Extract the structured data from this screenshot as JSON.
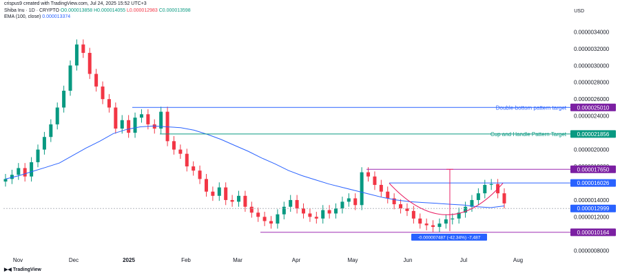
{
  "header": {
    "creator_line": "crispus9 created with TradingView.com, Jul 24, 2025 15:52 UTC+3",
    "symbol": "Shiba Inu · 1D · CRYPTO",
    "open": "O0.000013858",
    "high": "H0.000014055",
    "low": "L0.000012983",
    "close": "C0.000013598",
    "ema_label": "EMA (100, close)",
    "ema_value": "0.000013374",
    "currency": "USD"
  },
  "brand": "TradingView",
  "colors": {
    "up": "#089981",
    "down": "#f23645",
    "ema": "#2962ff",
    "double_bottom": "#2962ff",
    "cup_handle": "#089981",
    "magenta": "#9c27b0",
    "grid": "#f0f3fa"
  },
  "chart_data": {
    "type": "candlestick",
    "y_ticks": [
      "0.0000034000",
      "0.0000032000",
      "0.0000030000",
      "0.0000028000",
      "0.0000026000",
      "0.0000024000",
      "0.0000022000",
      "0.0000020000",
      "0.0000018000",
      "0.0000014000",
      "0.0000012000",
      "0.0000008000"
    ],
    "ylim": [
      7.7e-06,
      3.55e-05
    ],
    "x_ticks": [
      "Nov",
      "Dec",
      "2025",
      "Feb",
      "Mar",
      "Apr",
      "May",
      "Jun",
      "Jul",
      "Aug"
    ],
    "price_labels": [
      {
        "text": "0.000025010",
        "value": 2.501e-05,
        "color": "#7b1fa2"
      },
      {
        "text": "0.000021856",
        "value": 2.1856e-05,
        "color": "#089981"
      },
      {
        "text": "0.000017650",
        "value": 1.765e-05,
        "color": "#7b1fa2"
      },
      {
        "text": "0.000016026",
        "value": 1.6026e-05,
        "color": "#2962ff"
      },
      {
        "text": "0.000012999",
        "value": 1.2999e-05,
        "color": "#2962ff"
      },
      {
        "text": "0.000010164",
        "value": 1.0164e-05,
        "color": "#7b1fa2"
      }
    ],
    "annotations": [
      {
        "text": "Double-bottom pattern target",
        "value": 2.501e-05,
        "color": "#2962ff"
      },
      {
        "text": "Cup and Handle Pattern Target",
        "value": 2.1856e-05,
        "color": "#089981"
      }
    ],
    "measure_label": "-0.000007487 (-42.34%) -7,487",
    "series": [
      {
        "name": "EMA (100, close)",
        "values": [
          16.5,
          16.9,
          17.4,
          17.9,
          18.4,
          19.3,
          20.2,
          21.0,
          21.9,
          22.4,
          22.7,
          22.8,
          22.7,
          22.6,
          22.3,
          21.8,
          21.2,
          20.5,
          19.8,
          19.0,
          18.3,
          17.5,
          16.9,
          16.4,
          15.9,
          15.5,
          15.1,
          14.7,
          14.3,
          14.0,
          13.8,
          13.7,
          13.6,
          13.5,
          13.4,
          13.2,
          13.1,
          13.3
        ]
      }
    ],
    "closes": [
      16.5,
      17.0,
      17.8,
      16.8,
      18.5,
      20.0,
      21.5,
      23.0,
      25.0,
      27.0,
      30.0,
      32.5,
      31.5,
      29.0,
      27.5,
      26.0,
      25.0,
      22.5,
      23.5,
      22.0,
      23.8,
      24.2,
      23.0,
      22.5,
      24.5,
      21.0,
      20.0,
      19.5,
      18.0,
      17.5,
      16.5,
      15.0,
      14.5,
      15.5,
      14.0,
      13.8,
      14.5,
      13.2,
      12.5,
      12.0,
      11.5,
      11.2,
      12.3,
      13.2,
      14.0,
      13.0,
      12.4,
      12.0,
      11.8,
      12.8,
      12.4,
      13.0,
      13.8,
      14.2,
      13.4,
      17.3,
      16.8,
      15.8,
      15.0,
      14.2,
      13.5,
      13.0,
      12.7,
      11.8,
      11.2,
      11.0,
      10.8,
      11.2,
      11.7,
      11.8,
      12.5,
      13.2,
      14.0,
      14.8,
      15.8,
      15.9,
      14.8,
      13.6
    ]
  }
}
